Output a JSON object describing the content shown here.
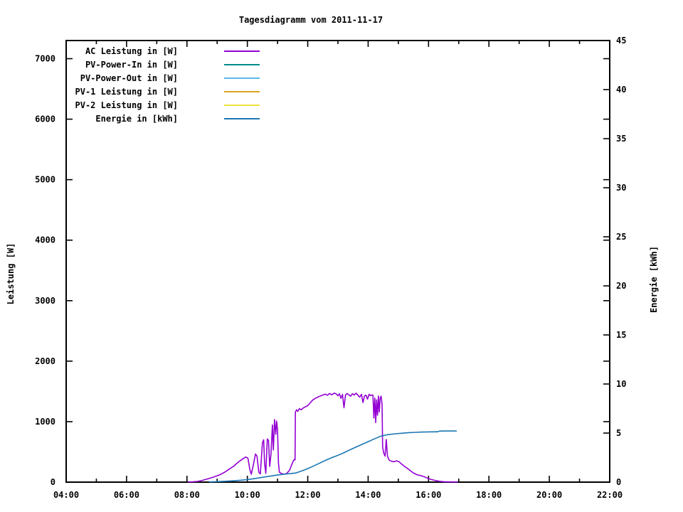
{
  "window": {
    "background": "#ffffff"
  },
  "chart_data": {
    "type": "line",
    "title": "Tagesdiagramm vom 2011-11-17",
    "grid": false,
    "legend_position": "top-left-inside",
    "axis_color": "#000000",
    "x_axis": {
      "unit": "time of day",
      "range_hours": [
        4,
        22
      ],
      "tick_hours": [
        4,
        6,
        8,
        10,
        12,
        14,
        16,
        18,
        20,
        22
      ],
      "tick_labels": [
        "04:00",
        "06:00",
        "08:00",
        "10:00",
        "12:00",
        "14:00",
        "16:00",
        "18:00",
        "20:00",
        "22:00"
      ],
      "minor_tick_hours": [
        5,
        7,
        9,
        11,
        13,
        15,
        17,
        19,
        21
      ]
    },
    "y_left_axis": {
      "label": "Leistung [W]",
      "range": [
        0,
        7300
      ],
      "ticks": [
        0,
        1000,
        2000,
        3000,
        4000,
        5000,
        6000,
        7000
      ]
    },
    "y_right_axis": {
      "label": "Energie [kWh]",
      "range": [
        0,
        45
      ],
      "ticks": [
        0,
        5,
        10,
        15,
        20,
        25,
        30,
        35,
        40,
        45
      ]
    },
    "series": [
      {
        "name": "AC Leistung in [W]",
        "color": "#9400D3",
        "axis": "left",
        "points": [
          [
            8.05,
            3
          ],
          [
            8.2,
            6
          ],
          [
            8.35,
            12
          ],
          [
            8.5,
            28
          ],
          [
            8.65,
            48
          ],
          [
            8.8,
            70
          ],
          [
            8.95,
            95
          ],
          [
            9.1,
            125
          ],
          [
            9.25,
            165
          ],
          [
            9.4,
            215
          ],
          [
            9.55,
            265
          ],
          [
            9.7,
            330
          ],
          [
            9.85,
            385
          ],
          [
            9.95,
            415
          ],
          [
            10.02,
            395
          ],
          [
            10.08,
            210
          ],
          [
            10.13,
            130
          ],
          [
            10.2,
            290
          ],
          [
            10.27,
            465
          ],
          [
            10.32,
            430
          ],
          [
            10.38,
            165
          ],
          [
            10.43,
            135
          ],
          [
            10.5,
            655
          ],
          [
            10.54,
            700
          ],
          [
            10.57,
            310
          ],
          [
            10.61,
            145
          ],
          [
            10.66,
            715
          ],
          [
            10.7,
            690
          ],
          [
            10.74,
            260
          ],
          [
            10.78,
            450
          ],
          [
            10.83,
            945
          ],
          [
            10.86,
            530
          ],
          [
            10.9,
            1035
          ],
          [
            10.94,
            790
          ],
          [
            10.97,
            1010
          ],
          [
            11.0,
            860
          ],
          [
            11.03,
            310
          ],
          [
            11.06,
            165
          ],
          [
            11.12,
            145
          ],
          [
            11.2,
            132
          ],
          [
            11.3,
            140
          ],
          [
            11.4,
            200
          ],
          [
            11.47,
            290
          ],
          [
            11.52,
            350
          ],
          [
            11.56,
            375
          ],
          [
            11.58,
            368
          ],
          [
            11.59,
            1160
          ],
          [
            11.63,
            1195
          ],
          [
            11.67,
            1170
          ],
          [
            11.72,
            1215
          ],
          [
            11.78,
            1195
          ],
          [
            11.85,
            1225
          ],
          [
            11.92,
            1245
          ],
          [
            12.0,
            1265
          ],
          [
            12.08,
            1310
          ],
          [
            12.16,
            1355
          ],
          [
            12.25,
            1385
          ],
          [
            12.33,
            1405
          ],
          [
            12.42,
            1425
          ],
          [
            12.5,
            1440
          ],
          [
            12.58,
            1455
          ],
          [
            12.65,
            1435
          ],
          [
            12.72,
            1465
          ],
          [
            12.8,
            1445
          ],
          [
            12.88,
            1472
          ],
          [
            12.95,
            1455
          ],
          [
            13.0,
            1430
          ],
          [
            13.05,
            1460
          ],
          [
            13.1,
            1385
          ],
          [
            13.15,
            1450
          ],
          [
            13.2,
            1230
          ],
          [
            13.25,
            1440
          ],
          [
            13.3,
            1465
          ],
          [
            13.36,
            1445
          ],
          [
            13.42,
            1420
          ],
          [
            13.48,
            1462
          ],
          [
            13.54,
            1440
          ],
          [
            13.6,
            1470
          ],
          [
            13.66,
            1438
          ],
          [
            13.72,
            1405
          ],
          [
            13.78,
            1452
          ],
          [
            13.83,
            1315
          ],
          [
            13.88,
            1428
          ],
          [
            13.93,
            1437
          ],
          [
            13.98,
            1372
          ],
          [
            14.03,
            1452
          ],
          [
            14.08,
            1430
          ],
          [
            14.13,
            1442
          ],
          [
            14.16,
            1435
          ],
          [
            14.19,
            1060
          ],
          [
            14.22,
            1390
          ],
          [
            14.25,
            985
          ],
          [
            14.28,
            1360
          ],
          [
            14.31,
            1105
          ],
          [
            14.34,
            1425
          ],
          [
            14.37,
            1160
          ],
          [
            14.4,
            1390
          ],
          [
            14.43,
            1420
          ],
          [
            14.46,
            1290
          ],
          [
            14.48,
            580
          ],
          [
            14.52,
            475
          ],
          [
            14.56,
            430
          ],
          [
            14.6,
            705
          ],
          [
            14.64,
            430
          ],
          [
            14.7,
            362
          ],
          [
            14.78,
            345
          ],
          [
            14.86,
            338
          ],
          [
            14.94,
            352
          ],
          [
            15.02,
            340
          ],
          [
            15.1,
            302
          ],
          [
            15.2,
            262
          ],
          [
            15.3,
            228
          ],
          [
            15.4,
            188
          ],
          [
            15.5,
            152
          ],
          [
            15.62,
            122
          ],
          [
            15.74,
            108
          ],
          [
            15.86,
            88
          ],
          [
            15.98,
            62
          ],
          [
            16.1,
            42
          ],
          [
            16.22,
            28
          ],
          [
            16.36,
            14
          ],
          [
            16.5,
            7
          ],
          [
            16.7,
            3
          ],
          [
            16.95,
            2
          ]
        ]
      },
      {
        "name": "PV-Power-In in [W]",
        "color": "#008C8C",
        "axis": "left",
        "points": []
      },
      {
        "name": "PV-Power-Out in [W]",
        "color": "#5CB8E8",
        "axis": "left",
        "points": []
      },
      {
        "name": "PV-1 Leistung in [W]",
        "color": "#DAA520",
        "axis": "left",
        "points": []
      },
      {
        "name": "PV-2 Leistung in [W]",
        "color": "#EEE33C",
        "axis": "left",
        "points": []
      },
      {
        "name": "Energie in [kWh]",
        "color": "#1B76B4",
        "axis": "right",
        "points": [
          [
            8.75,
            0.02
          ],
          [
            9.0,
            0.05
          ],
          [
            9.25,
            0.09
          ],
          [
            9.5,
            0.13
          ],
          [
            9.75,
            0.19
          ],
          [
            10.0,
            0.26
          ],
          [
            10.25,
            0.37
          ],
          [
            10.5,
            0.49
          ],
          [
            10.75,
            0.61
          ],
          [
            11.0,
            0.73
          ],
          [
            11.2,
            0.8
          ],
          [
            11.4,
            0.86
          ],
          [
            11.6,
            0.93
          ],
          [
            11.8,
            1.14
          ],
          [
            12.0,
            1.38
          ],
          [
            12.2,
            1.65
          ],
          [
            12.4,
            1.94
          ],
          [
            12.6,
            2.24
          ],
          [
            12.8,
            2.5
          ],
          [
            13.0,
            2.73
          ],
          [
            13.2,
            3.0
          ],
          [
            13.4,
            3.3
          ],
          [
            13.6,
            3.58
          ],
          [
            13.8,
            3.85
          ],
          [
            14.0,
            4.12
          ],
          [
            14.2,
            4.4
          ],
          [
            14.4,
            4.66
          ],
          [
            14.55,
            4.78
          ],
          [
            14.7,
            4.86
          ],
          [
            14.9,
            4.93
          ],
          [
            15.1,
            4.98
          ],
          [
            15.3,
            5.03
          ],
          [
            15.55,
            5.07
          ],
          [
            15.8,
            5.1
          ],
          [
            16.1,
            5.12
          ],
          [
            16.3,
            5.13
          ],
          [
            16.36,
            5.2
          ],
          [
            16.6,
            5.21
          ],
          [
            16.92,
            5.21
          ]
        ]
      }
    ]
  }
}
